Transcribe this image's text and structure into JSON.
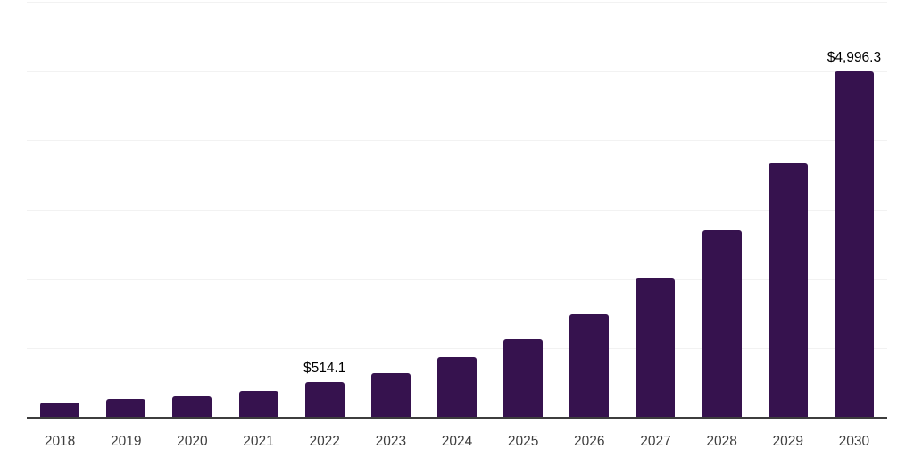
{
  "chart_data": {
    "type": "bar",
    "title": "",
    "xlabel": "",
    "ylabel": "",
    "categories": [
      "2018",
      "2019",
      "2020",
      "2021",
      "2022",
      "2023",
      "2024",
      "2025",
      "2026",
      "2027",
      "2028",
      "2029",
      "2030"
    ],
    "values": [
      225,
      265,
      315,
      385,
      514.1,
      650,
      875,
      1130,
      1500,
      2005,
      2700,
      3675,
      4996.3
    ],
    "point_labels": {
      "2022": "$514.1",
      "2030": "$4,996.3"
    },
    "ylim": [
      0,
      6000
    ],
    "gridline_values": [
      1000,
      2000,
      3000,
      4000,
      5000,
      6000
    ],
    "grid": "horizontal",
    "legend": "none",
    "y_axis_tick_labels": "none",
    "colors": {
      "bar": "#36124E",
      "axis_line": "#3d3d3d",
      "gridline": "#f2f2f2",
      "tick_label": "#3f3f3f",
      "value_label": "#000000",
      "background": "#ffffff"
    }
  }
}
